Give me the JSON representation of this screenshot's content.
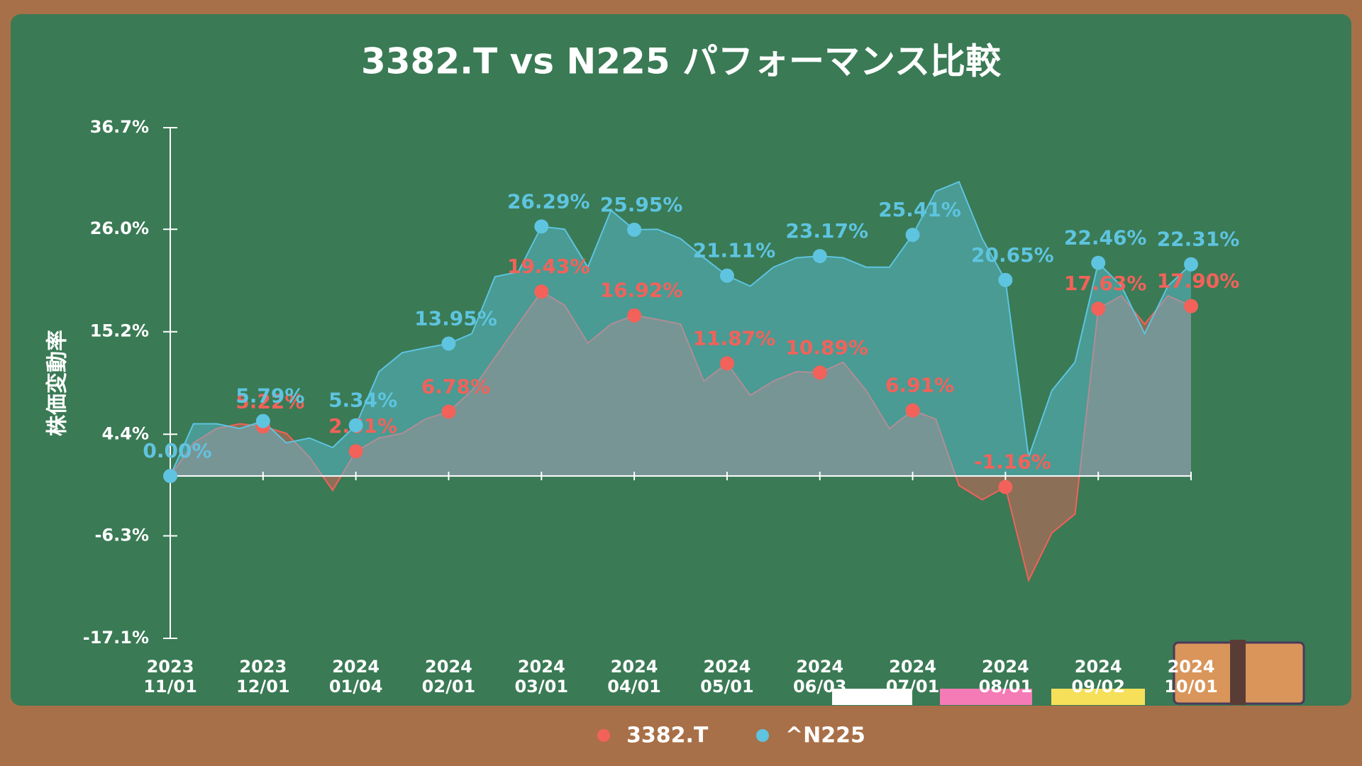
{
  "chart_data": {
    "type": "area",
    "title": "3382.T vs N225 パフォーマンス比較",
    "y_label": "株価変動率",
    "categories": [
      "2023\n11/01",
      null,
      null,
      null,
      "2023\n12/01",
      null,
      null,
      null,
      "2024\n01/04",
      null,
      null,
      null,
      "2024\n02/01",
      null,
      null,
      null,
      "2024\n03/01",
      null,
      null,
      null,
      "2024\n04/01",
      null,
      null,
      null,
      "2024\n05/01",
      null,
      null,
      null,
      "2024\n06/03",
      null,
      null,
      null,
      "2024\n07/01",
      null,
      null,
      null,
      "2024\n08/01",
      null,
      null,
      null,
      "2024\n09/02",
      null,
      null,
      null,
      "2024\n10/01"
    ],
    "series": [
      {
        "name": "3382.T",
        "color": "#f2625a",
        "values": [
          0,
          3.5,
          5,
          5.5,
          5.22,
          4.5,
          2,
          -1.5,
          2.61,
          4,
          4.5,
          6,
          6.78,
          9,
          12.5,
          16,
          19.43,
          18,
          14,
          16,
          16.92,
          16.5,
          16,
          10,
          11.87,
          8.5,
          10,
          11,
          10.89,
          12,
          9,
          5,
          6.91,
          6,
          -1,
          -2.5,
          -1.16,
          -11,
          -6,
          -4,
          17.63,
          19,
          16,
          19,
          17.9
        ],
        "value_labels": [
          "0.00%",
          null,
          null,
          null,
          "5.22%",
          null,
          null,
          null,
          "2.61%",
          null,
          null,
          null,
          "6.78%",
          null,
          null,
          null,
          "19.43%",
          null,
          null,
          null,
          "16.92%",
          null,
          null,
          null,
          "11.87%",
          null,
          null,
          null,
          "10.89%",
          null,
          null,
          null,
          "6.91%",
          null,
          null,
          null,
          "-1.16%",
          null,
          null,
          null,
          "17.63%",
          null,
          null,
          null,
          "17.90%"
        ]
      },
      {
        "name": "^N225",
        "color": "#5ec4e0",
        "values": [
          0,
          5.5,
          5.5,
          5,
          5.79,
          3.5,
          4,
          3,
          5.34,
          11,
          13,
          13.5,
          13.95,
          15,
          21,
          21.5,
          26.29,
          26,
          22,
          28,
          25.95,
          26,
          25,
          23,
          21.11,
          20,
          22,
          23,
          23.17,
          23,
          22,
          22,
          25.41,
          30,
          31,
          25,
          20.65,
          2,
          9,
          12,
          22.46,
          20,
          15,
          20,
          22.31
        ],
        "value_labels": [
          "0.00%",
          null,
          null,
          null,
          "5.79%",
          null,
          null,
          null,
          "5.34%",
          null,
          null,
          null,
          "13.95%",
          null,
          null,
          null,
          "26.29%",
          null,
          null,
          null,
          "25.95%",
          null,
          null,
          null,
          "21.11%",
          null,
          null,
          null,
          "23.17%",
          null,
          null,
          null,
          "25.41%",
          null,
          null,
          null,
          "20.65%",
          null,
          null,
          null,
          "22.46%",
          null,
          null,
          null,
          "22.31%"
        ]
      }
    ],
    "ylim": [
      -17.1,
      36.7
    ],
    "yticks": [
      {
        "value": -17.1,
        "label": "-17.1%"
      },
      {
        "value": -6.3,
        "label": "-6.3%"
      },
      {
        "value": 4.4,
        "label": "4.4%"
      },
      {
        "value": 15.2,
        "label": "15.2%"
      },
      {
        "value": 26.0,
        "label": "26.0%"
      },
      {
        "value": 36.7,
        "label": "36.7%"
      }
    ],
    "legend": "bottom"
  }
}
